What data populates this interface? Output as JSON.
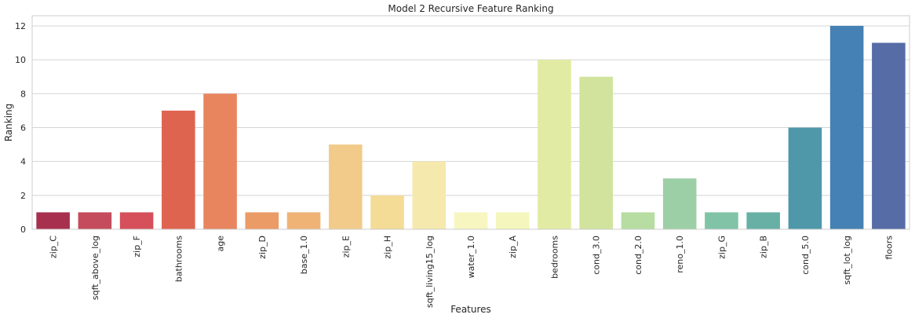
{
  "chart_data": {
    "type": "bar",
    "title": "Model 2 Recursive Feature Ranking",
    "xlabel": "Features",
    "ylabel": "Ranking",
    "ylim": [
      0,
      12.6
    ],
    "yticks": [
      0,
      2,
      4,
      6,
      8,
      10,
      12
    ],
    "grid": true,
    "categories": [
      "zip_C",
      "sqft_above_log",
      "zip_F",
      "bathrooms",
      "age",
      "zip_D",
      "base_1.0",
      "zip_E",
      "zip_H",
      "sqft_living15_log",
      "water_1.0",
      "zip_A",
      "bedrooms",
      "cond_3.0",
      "cond_2.0",
      "reno_1.0",
      "zip_G",
      "zip_B",
      "cond_5.0",
      "sqft_lot_log",
      "floors"
    ],
    "values": [
      1,
      1,
      1,
      7,
      8,
      1,
      1,
      5,
      2,
      4,
      1,
      1,
      10,
      9,
      1,
      3,
      1,
      1,
      6,
      12,
      11
    ],
    "colors": [
      "#a8304f",
      "#c44c5c",
      "#d5505a",
      "#df6450",
      "#e8855f",
      "#eb9b65",
      "#f0b376",
      "#f2cb8a",
      "#f4dc97",
      "#f5e9ad",
      "#f8f6c0",
      "#f4f6bd",
      "#e2eba3",
      "#d1e39d",
      "#b8dda2",
      "#9ccfa5",
      "#80c3a7",
      "#68b0a6",
      "#4f98aa",
      "#4581b4",
      "#566ca6"
    ]
  }
}
